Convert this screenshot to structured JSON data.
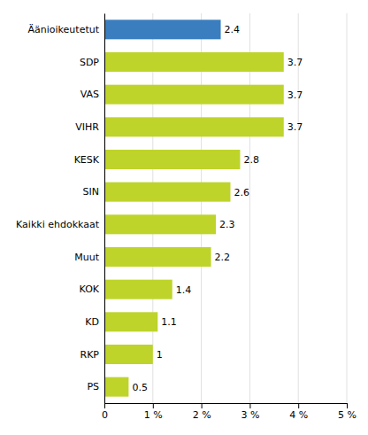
{
  "chart_data": {
    "type": "bar",
    "orientation": "horizontal",
    "categories": [
      "Äänioikeutetut",
      "SDP",
      "VAS",
      "VIHR",
      "KESK",
      "SIN",
      "Kaikki ehdokkaat",
      "Muut",
      "KOK",
      "KD",
      "RKP",
      "PS"
    ],
    "values": [
      2.4,
      3.7,
      3.7,
      3.7,
      2.8,
      2.6,
      2.3,
      2.2,
      1.4,
      1.1,
      1.0,
      0.5
    ],
    "value_labels": [
      "2.4",
      "3.7",
      "3.7",
      "3.7",
      "2.8",
      "2.6",
      "2.3",
      "2.2",
      "1.4",
      "1.1",
      "1",
      "0.5"
    ],
    "data_labels": true,
    "colors": [
      "#3a7ebf",
      "#bed42a",
      "#bed42a",
      "#bed42a",
      "#bed42a",
      "#bed42a",
      "#bed42a",
      "#bed42a",
      "#bed42a",
      "#bed42a",
      "#bed42a",
      "#bed42a"
    ],
    "xlim": [
      0,
      5
    ],
    "xticks": [
      0,
      {
        "value": 1,
        "label": "1 %"
      },
      {
        "value": 2,
        "label": "2 %"
      },
      {
        "value": 3,
        "label": "3 %"
      },
      {
        "value": 4,
        "label": "4 %"
      },
      {
        "value": 5,
        "label": "5 %"
      }
    ],
    "grid": true
  }
}
